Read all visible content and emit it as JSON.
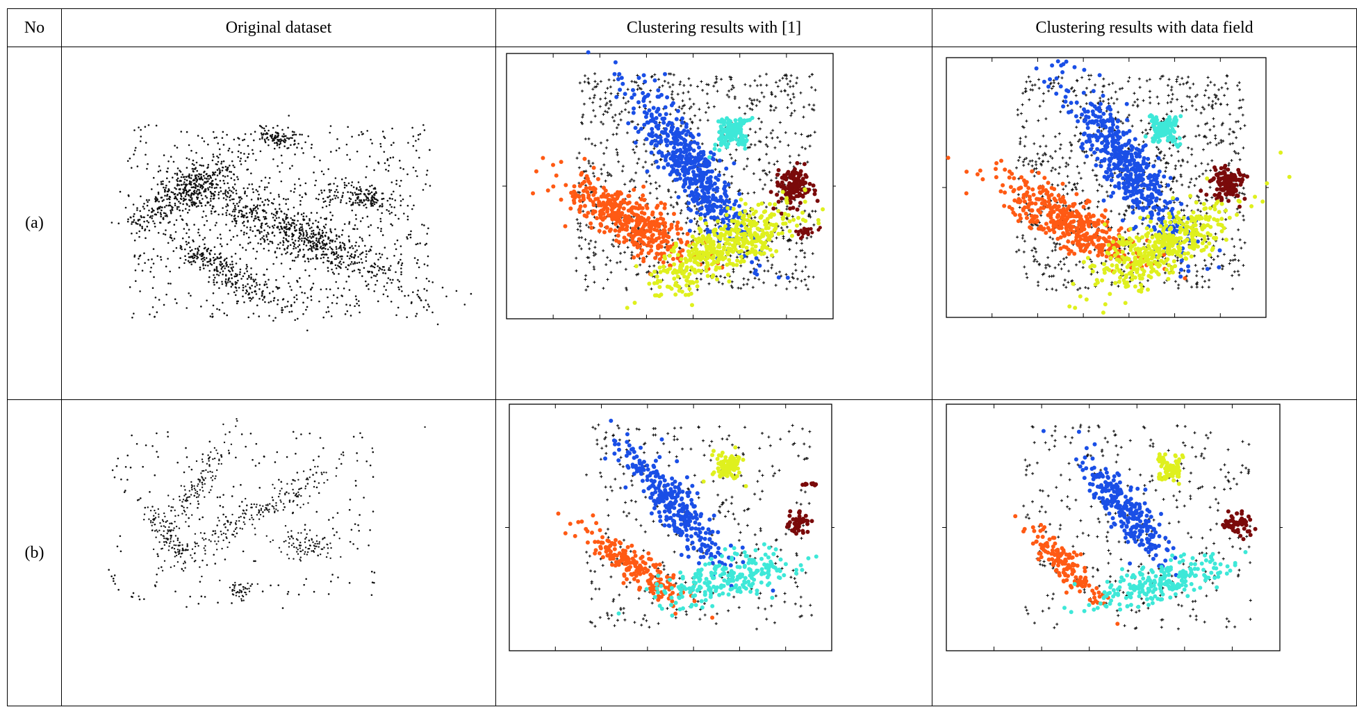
{
  "table": {
    "headers": [
      "No",
      "Original dataset",
      "Clustering results with [1]",
      "Clustering results with data field"
    ],
    "rows": [
      {
        "label": "(a)"
      },
      {
        "label": "(b)"
      }
    ]
  },
  "colors": {
    "noise": "#111111",
    "blue": "#1a4fe6",
    "cyan": "#3ee8d8",
    "yellow": "#dff01e",
    "orange": "#ff5a14",
    "darkred": "#7a0a0a"
  },
  "figures": {
    "row_a": {
      "original": {
        "description": "scatter of noise points with five dense elongated and compact groups"
      },
      "method1": {
        "clusters": [
          "blue",
          "cyan",
          "darkred",
          "orange",
          "yellow"
        ]
      },
      "datafield": {
        "clusters": [
          "blue",
          "cyan",
          "darkred",
          "orange",
          "yellow"
        ]
      }
    },
    "row_b": {
      "original": {
        "description": "sparse scatter with five loose groups"
      },
      "method1": {
        "clusters": [
          "blue",
          "yellow",
          "darkred",
          "orange",
          "cyan"
        ]
      },
      "datafield": {
        "clusters": [
          "blue",
          "yellow",
          "darkred",
          "orange",
          "cyan"
        ]
      }
    }
  }
}
